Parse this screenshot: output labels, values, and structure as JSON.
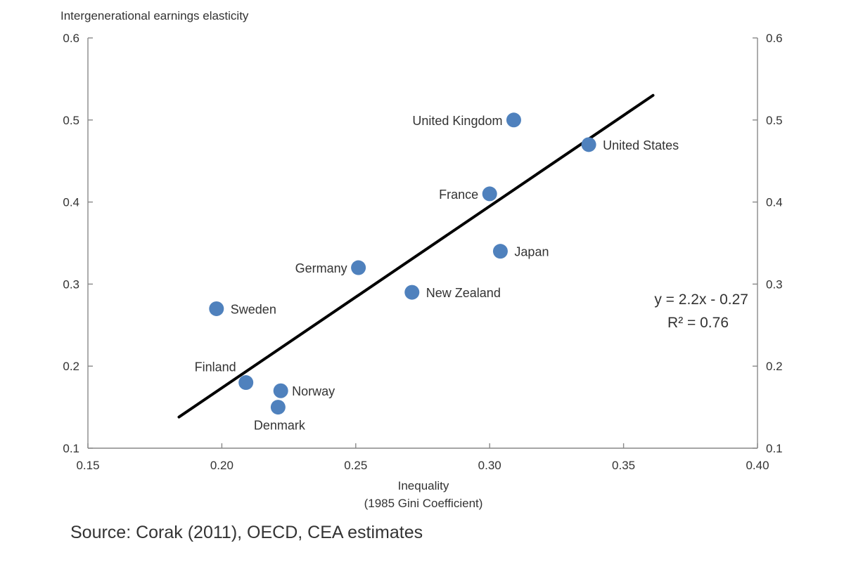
{
  "chart_data": {
    "type": "scatter",
    "title": "",
    "ylabel": "Intergenerational earnings elasticity",
    "xlabel": "Inequality",
    "xlabel_sub": "(1985 Gini Coefficient)",
    "xlim": [
      0.15,
      0.4
    ],
    "ylim": [
      0.1,
      0.6
    ],
    "x_ticks": [
      "0.15",
      "0.20",
      "0.25",
      "0.30",
      "0.35",
      "0.40"
    ],
    "y_ticks": [
      "0.1",
      "0.2",
      "0.3",
      "0.4",
      "0.5",
      "0.6"
    ],
    "grid": false,
    "marker_color": "#4f81bd",
    "points": [
      {
        "label": "United Kingdom",
        "x": 0.309,
        "y": 0.5
      },
      {
        "label": "United States",
        "x": 0.337,
        "y": 0.47
      },
      {
        "label": "France",
        "x": 0.3,
        "y": 0.41
      },
      {
        "label": "Japan",
        "x": 0.304,
        "y": 0.34
      },
      {
        "label": "Germany",
        "x": 0.251,
        "y": 0.32
      },
      {
        "label": "New Zealand",
        "x": 0.271,
        "y": 0.29
      },
      {
        "label": "Sweden",
        "x": 0.198,
        "y": 0.27
      },
      {
        "label": "Finland",
        "x": 0.209,
        "y": 0.18
      },
      {
        "label": "Norway",
        "x": 0.222,
        "y": 0.17
      },
      {
        "label": "Denmark",
        "x": 0.221,
        "y": 0.15
      }
    ],
    "trendline": {
      "x": [
        0.184,
        0.361
      ],
      "y": [
        0.138,
        0.53
      ],
      "color": "#000000",
      "equation": "y = 2.2x - 0.27",
      "r_squared": "R² = 0.76"
    }
  },
  "source": "Source: Corak (2011), OECD, CEA estimates"
}
